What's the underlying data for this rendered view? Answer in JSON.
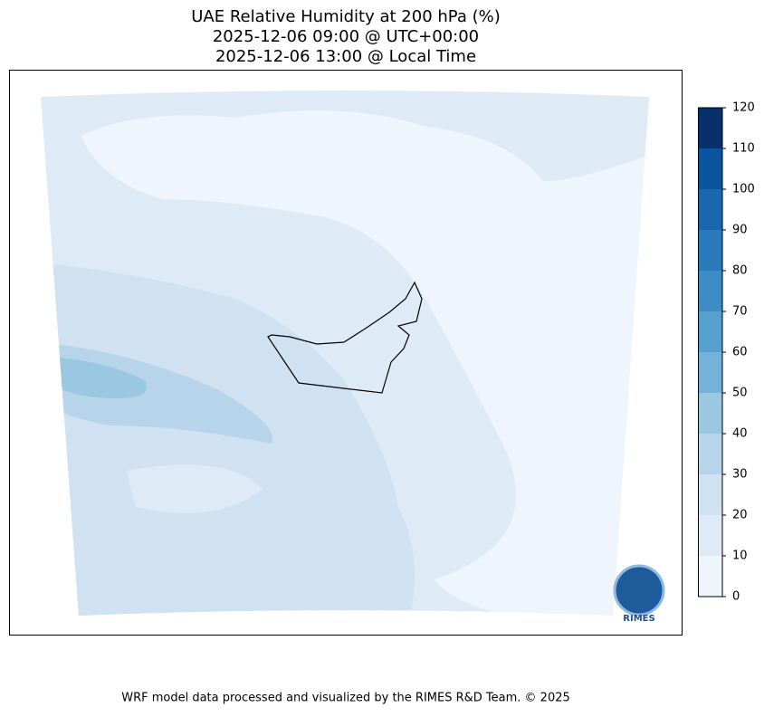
{
  "title": [
    "UAE Relative Humidity at 200 hPa (%)",
    "2025-12-06 09:00 @ UTC+00:00",
    "2025-12-06 13:00 @ Local Time"
  ],
  "colorbar": {
    "lim": [
      0,
      120
    ],
    "ticks": [
      0,
      10,
      20,
      30,
      40,
      50,
      60,
      70,
      80,
      90,
      100,
      110,
      120
    ],
    "colors": [
      "#eff5fc",
      "#deebf7",
      "#d0e1f2",
      "#b7d4ea",
      "#9ac8e0",
      "#74b2d8",
      "#57a0ce",
      "#3d8dc4",
      "#2b7ab9",
      "#1a67ad",
      "#0b559f",
      "#08306b"
    ]
  },
  "logo_text": "RIMES",
  "footer": "WRF model data processed and visualized by the RIMES R&D Team. © 2025"
}
